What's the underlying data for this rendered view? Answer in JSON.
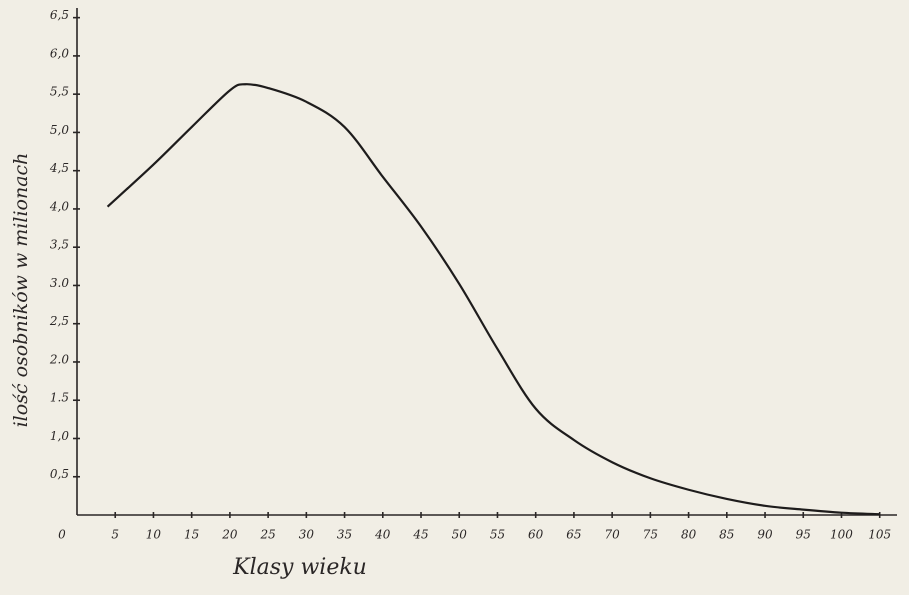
{
  "chart_data": {
    "type": "line",
    "x_label": "Klasy wieku",
    "y_label": "ilość osobników w milionach",
    "x": [
      4,
      10,
      15,
      20,
      22,
      25,
      30,
      35,
      40,
      45,
      50,
      55,
      60,
      65,
      70,
      75,
      80,
      85,
      90,
      95,
      100,
      105
    ],
    "series": [
      {
        "color": "#1e1c1c",
        "values": [
          4.03,
          4.58,
          5.07,
          5.55,
          5.63,
          5.58,
          5.4,
          5.07,
          4.42,
          3.77,
          3.02,
          2.17,
          1.39,
          0.98,
          0.69,
          0.48,
          0.33,
          0.21,
          0.12,
          0.07,
          0.03,
          0.01
        ]
      }
    ],
    "xlim": [
      0,
      107
    ],
    "ylim": [
      0,
      6.6
    ],
    "xticks": [
      0,
      5,
      10,
      15,
      20,
      25,
      30,
      35,
      40,
      45,
      50,
      55,
      60,
      65,
      70,
      75,
      80,
      85,
      90,
      95,
      100,
      105
    ],
    "yticks": [
      {
        "value": 0.5,
        "label": "0,5"
      },
      {
        "value": 1,
        "label": "1,0"
      },
      {
        "value": 1.5,
        "label": "1.5"
      },
      {
        "value": 2,
        "label": "2.0"
      },
      {
        "value": 2.5,
        "label": "2,5"
      },
      {
        "value": 3,
        "label": "3.0"
      },
      {
        "value": 3.5,
        "label": "3,5"
      },
      {
        "value": 4,
        "label": "4,0"
      },
      {
        "value": 4.5,
        "label": "4,5"
      },
      {
        "value": 5,
        "label": "5,0"
      },
      {
        "value": 5.5,
        "label": "5,5"
      },
      {
        "value": 6,
        "label": "6,0"
      },
      {
        "value": 6.5,
        "label": "6,5"
      }
    ],
    "grid": false
  }
}
